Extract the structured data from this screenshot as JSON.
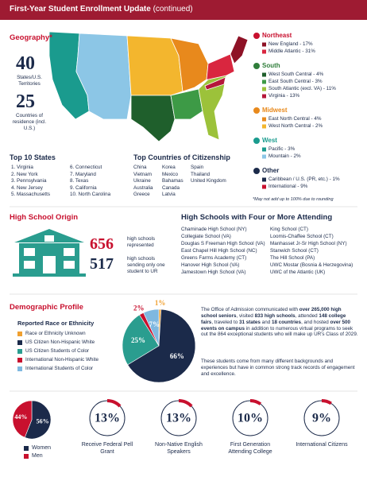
{
  "header": {
    "title": "First-Year Student Enrollment Update",
    "subtitle": "(continued)"
  },
  "geography": {
    "title": "Geography*",
    "stats": [
      {
        "value": "40",
        "label": "States/U.S. Territories"
      },
      {
        "value": "25",
        "label": "Countries of residence (incl. U.S.)"
      }
    ],
    "regions": [
      {
        "name": "Northeast",
        "color": "#c8102e",
        "items": [
          {
            "label": "New England - 17%",
            "color": "#8e1226"
          },
          {
            "label": "Middle Atlantic - 31%",
            "color": "#d9263f"
          }
        ]
      },
      {
        "name": "South",
        "color": "#2f7d3a",
        "items": [
          {
            "label": "West South Central - 4%",
            "color": "#1f5f2c"
          },
          {
            "label": "East South Central - 3%",
            "color": "#3d9a46"
          },
          {
            "label": "South Atlantic (excl. VA) - 11%",
            "color": "#9cc23a"
          },
          {
            "label": "Virginia - 13%",
            "color": "#b5173a"
          }
        ]
      },
      {
        "name": "Midwest",
        "color": "#e8891c",
        "items": [
          {
            "label": "East North Central - 4%",
            "color": "#e8891c"
          },
          {
            "label": "West North Central - 2%",
            "color": "#f3b62e"
          }
        ]
      },
      {
        "name": "West",
        "color": "#1a9b8e",
        "items": [
          {
            "label": "Pacific - 3%",
            "color": "#1a9b8e"
          },
          {
            "label": "Mountain - 2%",
            "color": "#8cc6e6"
          }
        ]
      },
      {
        "name": "Other",
        "color": "#1b2a4a",
        "items": [
          {
            "label": "Caribbean / U.S. (PR, etc.) - 1%",
            "color": "#1b2a4a"
          },
          {
            "label": "International - 9%",
            "color": "#c8102e"
          }
        ]
      }
    ],
    "footnote": "*May not add up to 100% due to rounding"
  },
  "top_states": {
    "title": "Top 10 States",
    "items": [
      "1. Virginia",
      "2. New York",
      "3. Pennsylvania",
      "4. New Jersey",
      "5. Massachusetts",
      "6. Connecticut",
      "7. Maryland",
      "8. Texas",
      "9. California",
      "10. North Carolina"
    ]
  },
  "top_countries": {
    "title": "Top Countries of Citizenship",
    "columns": [
      [
        "China",
        "Vietnam",
        "Ukraine",
        "Australia",
        "Greece"
      ],
      [
        "Korea",
        "Mexico",
        "Bahamas",
        "Canada",
        "Latvia"
      ],
      [
        "Spain",
        "Thailand",
        "United Kingdom"
      ]
    ]
  },
  "high_school_origin": {
    "title": "High School Origin",
    "stats": [
      {
        "value": "656",
        "label": "high schools represented"
      },
      {
        "value": "517",
        "label": "high schools sending only one student to UR"
      }
    ]
  },
  "high_schools_four_plus": {
    "title": "High Schools with Four or More Attending",
    "columns": [
      [
        "Chaminade High School (NY)",
        "Collegiate School (VA)",
        "Douglas S Freeman High School (VA)",
        "East Chapel Hill High School (NC)",
        "Greens Farms Academy (CT)",
        "Hanover High School (VA)",
        "Jamestown High School (VA)"
      ],
      [
        "King School (CT)",
        "Loomis-Chaffee School (CT)",
        "Manhasset Jr-Sr High School (NY)",
        "Stanwich School (CT)",
        "The Hill School (PA)",
        "UWC Mostar (Bosnia & Herzegovina)",
        "UWC of the Atlantic (UK)"
      ]
    ]
  },
  "demographic_profile": {
    "title": "Demographic Profile",
    "race_title": "Reported Race or Ethnicity",
    "race": [
      {
        "name": "Race or Ethnicity Unknown",
        "color": "#f0a030",
        "value": 1,
        "label": "1%"
      },
      {
        "name": "US Citizen Non-Hispanic White",
        "color": "#1b2a4a",
        "value": 66,
        "label": "66%"
      },
      {
        "name": "US Citizen Students of Color",
        "color": "#2a9d8f",
        "value": 25,
        "label": "25%"
      },
      {
        "name": "International Non-Hispanic White",
        "color": "#c8102e",
        "value": 2,
        "label": "2%"
      },
      {
        "name": "International Students of Color",
        "color": "#7fb8e0",
        "value": 7,
        "label": "7%"
      }
    ],
    "paragraphs": [
      [
        {
          "text": "The Office of Admission communicated with ",
          "bold": false
        },
        {
          "text": "over 265,000 high school seniors",
          "bold": true
        },
        {
          "text": ", visited ",
          "bold": false
        },
        {
          "text": "833 high schools",
          "bold": true
        },
        {
          "text": ", attended ",
          "bold": false
        },
        {
          "text": "148 college fairs",
          "bold": true
        },
        {
          "text": ", traveled to ",
          "bold": false
        },
        {
          "text": "31 states",
          "bold": true
        },
        {
          "text": " and ",
          "bold": false
        },
        {
          "text": "18 countries",
          "bold": true
        },
        {
          "text": ", and hosted ",
          "bold": false
        },
        {
          "text": "over 500 events on campus",
          "bold": true
        },
        {
          "text": " in addition to numerous virtual programs to seek out the 864 exceptional students who will make up UR's Class of 2029.",
          "bold": false
        }
      ],
      [
        {
          "text": "These students come from many different backgrounds and experiences but have in common strong track records of engagement and excellence.",
          "bold": false
        }
      ]
    ]
  },
  "gender": [
    {
      "name": "Women",
      "color": "#1b2a4a",
      "value": 56,
      "label": "56%"
    },
    {
      "name": "Men",
      "color": "#c8102e",
      "value": 44,
      "label": "44%"
    }
  ],
  "rings": [
    {
      "value": 13,
      "label": "13%",
      "caption": "Receive Federal Pell Grant"
    },
    {
      "value": 13,
      "label": "13%",
      "caption": "Non-Native English Speakers"
    },
    {
      "value": 10,
      "label": "10%",
      "caption": "First Generation Attending College"
    },
    {
      "value": 9,
      "label": "9%",
      "caption": "International Citizens"
    }
  ]
}
